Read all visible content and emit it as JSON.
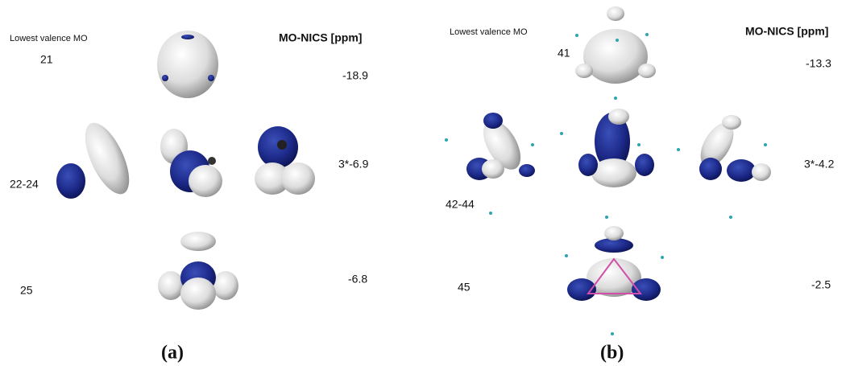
{
  "panels": [
    {
      "mo_header": "Lowest valence MO",
      "nics_header": "MO-NICS [ppm]",
      "rows": [
        {
          "mo": "21",
          "nics": "-18.9"
        },
        {
          "mo": "22-24",
          "nics": "3*-6.9"
        },
        {
          "mo": "25",
          "nics": "-6.8"
        }
      ],
      "caption": "(a)"
    },
    {
      "mo_header": "Lowest valence MO",
      "nics_header": "MO-NICS [ppm]",
      "rows": [
        {
          "mo": "41",
          "nics": "-13.3"
        },
        {
          "mo": "42-44",
          "nics": "3*-4.2"
        },
        {
          "mo": "45",
          "nics": "-2.5"
        }
      ],
      "caption": "(b)"
    }
  ]
}
